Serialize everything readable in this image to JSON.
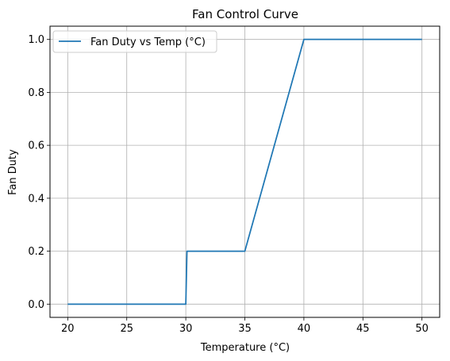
{
  "chart_data": {
    "type": "line",
    "title": "Fan Control Curve",
    "xlabel": "Temperature (°C)",
    "ylabel": "Fan Duty",
    "xlim": [
      18.5,
      51.5
    ],
    "ylim": [
      -0.05,
      1.05
    ],
    "xticks": [
      20,
      25,
      30,
      35,
      40,
      45,
      50
    ],
    "yticks": [
      0.0,
      0.2,
      0.4,
      0.6,
      0.8,
      1.0
    ],
    "xtick_labels": [
      "20",
      "25",
      "30",
      "35",
      "40",
      "45",
      "50"
    ],
    "ytick_labels": [
      "0.0",
      "0.2",
      "0.4",
      "0.6",
      "0.8",
      "1.0"
    ],
    "grid": true,
    "legend_position": "upper-left",
    "series": [
      {
        "name": "Fan Duty vs Temp (°C)",
        "color": "#1f77b4",
        "x": [
          20,
          30,
          30.1,
          35,
          40,
          50
        ],
        "y": [
          0.0,
          0.0,
          0.2,
          0.2,
          1.0,
          1.0
        ]
      }
    ]
  }
}
